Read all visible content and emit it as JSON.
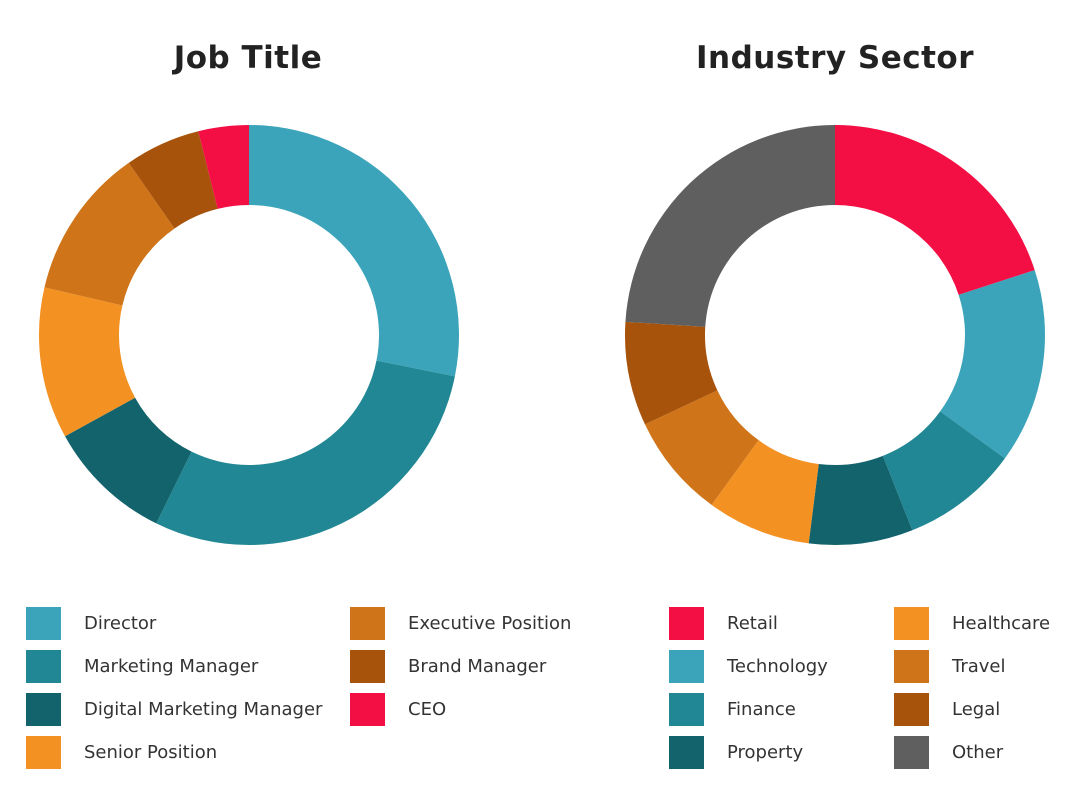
{
  "chart_data": [
    {
      "type": "pie",
      "title": "Job Title",
      "categories": [
        "Director",
        "Marketing Manager",
        "Digital Marketing Manager",
        "Senior Position",
        "Executive Position",
        "Brand Manager",
        "CEO"
      ],
      "values": [
        29,
        30,
        10,
        12,
        12,
        6,
        4
      ],
      "colors": [
        "#3ba4bb",
        "#228794",
        "#13636c",
        "#f39122",
        "#cf7418",
        "#a8530b",
        "#f30e44"
      ],
      "legend": "bottom"
    },
    {
      "type": "pie",
      "title": "Industry Sector",
      "categories": [
        "Retail",
        "Technology",
        "Finance",
        "Property",
        "Healthcare",
        "Travel",
        "Legal",
        "Other"
      ],
      "values": [
        20,
        15,
        9,
        8,
        8,
        8,
        8,
        24
      ],
      "colors": [
        "#f30e44",
        "#3ba4bb",
        "#228794",
        "#13636c",
        "#f39122",
        "#cf7418",
        "#a8530b",
        "#5f5f5f"
      ],
      "legend": "bottom"
    }
  ]
}
